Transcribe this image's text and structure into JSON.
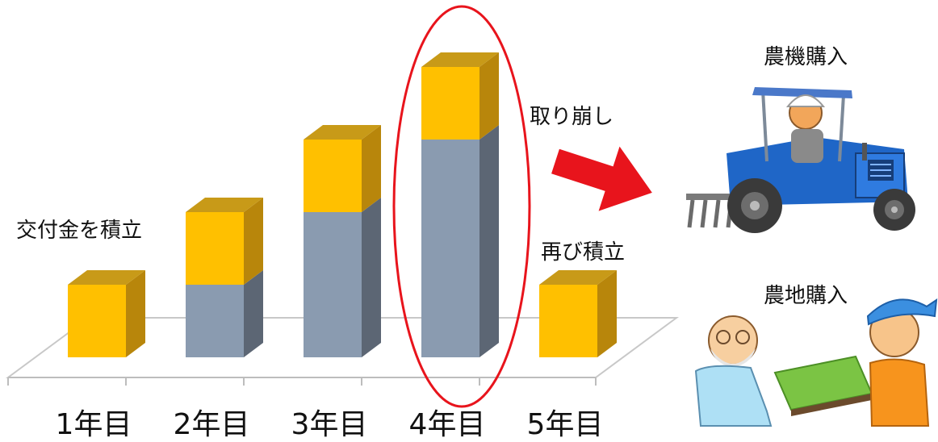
{
  "labels": {
    "accumulate": "交付金を積立",
    "withdraw": "取り崩し",
    "reaccumulate": "再び積立",
    "buy_machine": "農機購入",
    "buy_land": "農地購入"
  },
  "chart_data": {
    "type": "bar",
    "stacked": true,
    "categories": [
      "1年目",
      "2年目",
      "3年目",
      "4年目",
      "5年目"
    ],
    "series": [
      {
        "values": [
          0,
          1,
          2,
          3,
          0
        ]
      },
      {
        "values": [
          1,
          1,
          1,
          1,
          1
        ]
      }
    ],
    "ylim": [
      0,
      4
    ],
    "grid": false,
    "highlight_category": "4年目",
    "colors": {
      "accumulated": "#8a9bb0",
      "accumulated_side": "#5c6674",
      "accumulated_top": "#707e92",
      "new": "#ffc000",
      "new_side": "#b8860b",
      "new_top": "#c89a18",
      "highlight": "#e8141c",
      "arrow": "#e8141c"
    }
  }
}
